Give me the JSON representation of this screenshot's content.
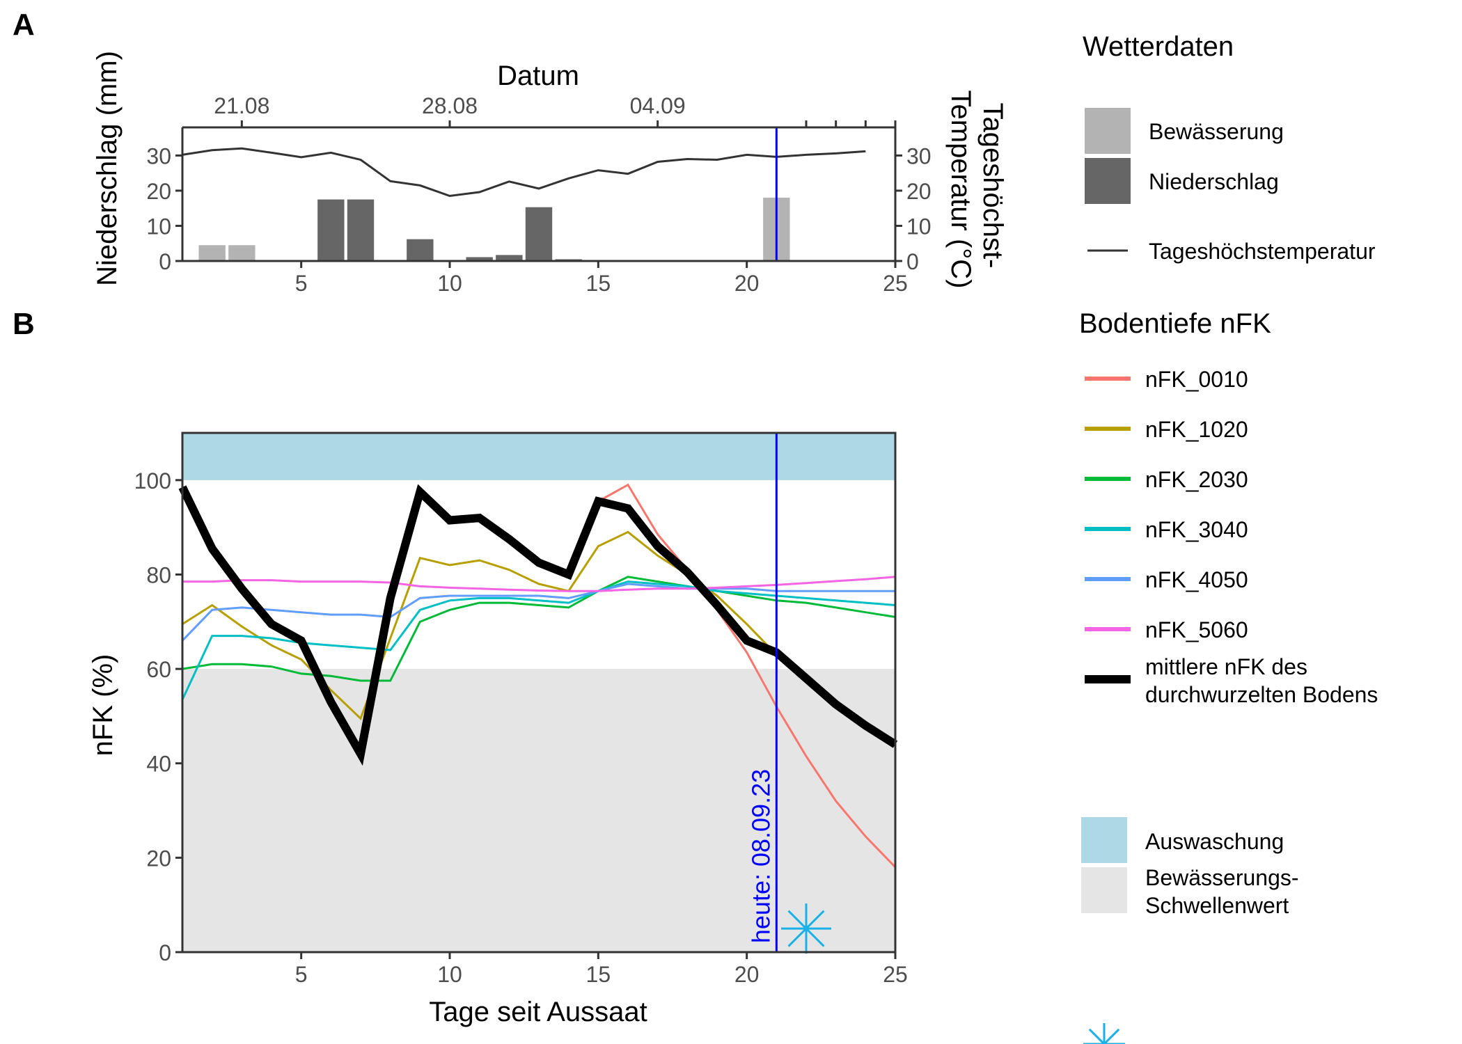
{
  "panel_labels": {
    "a": "A",
    "b": "B"
  },
  "colors": {
    "bewaesserung": "#b3b3b3",
    "niederschlag": "#666666",
    "temperature_line": "#333333",
    "today_line": "#0000ff",
    "auswaschung": "#add8e6",
    "schwellenwert": "#e5e5e5",
    "mean_nfk": "#000000",
    "star": "#1ab2e6"
  },
  "chart_data": [
    {
      "type": "bar",
      "panel": "A",
      "top_axis_title": "Datum",
      "top_ticks": [
        {
          "x": 3,
          "label": "21.08"
        },
        {
          "x": 10,
          "label": "28.08"
        },
        {
          "x": 17,
          "label": "04.09"
        }
      ],
      "top_minor_ticks": [
        22,
        23,
        24,
        25
      ],
      "ylabel_left": "Niederschlag (mm)",
      "ylabel_right": "Tageshöchst-\nTemperatur (°C)",
      "xlim": [
        1,
        25
      ],
      "ylim": [
        0,
        38
      ],
      "x_ticks": [
        5,
        10,
        15,
        20,
        25
      ],
      "y_ticks": [
        0,
        10,
        20,
        30
      ],
      "today_x": 21,
      "bars": [
        {
          "x": 2,
          "value": 4.5,
          "type": "Bewässerung"
        },
        {
          "x": 3,
          "value": 4.5,
          "type": "Bewässerung"
        },
        {
          "x": 6,
          "value": 17.5,
          "type": "Niederschlag"
        },
        {
          "x": 7,
          "value": 17.5,
          "type": "Niederschlag"
        },
        {
          "x": 9,
          "value": 6.2,
          "type": "Niederschlag"
        },
        {
          "x": 11,
          "value": 1.1,
          "type": "Niederschlag"
        },
        {
          "x": 12,
          "value": 1.7,
          "type": "Niederschlag"
        },
        {
          "x": 13,
          "value": 15.3,
          "type": "Niederschlag"
        },
        {
          "x": 14,
          "value": 0.5,
          "type": "Niederschlag"
        },
        {
          "x": 21,
          "value": 18.0,
          "type": "Bewässerung"
        }
      ],
      "temperature": {
        "name": "Tageshöchstemperatur",
        "x": [
          1,
          2,
          3,
          4,
          5,
          6,
          7,
          8,
          9,
          10,
          11,
          12,
          13,
          14,
          15,
          16,
          17,
          18,
          19,
          20,
          21,
          22,
          23,
          24
        ],
        "y": [
          30.2,
          31.5,
          32.0,
          30.8,
          29.5,
          30.8,
          28.8,
          22.7,
          21.5,
          18.5,
          19.6,
          22.6,
          20.6,
          23.5,
          25.8,
          24.8,
          28.2,
          29.0,
          28.8,
          30.2,
          29.6,
          30.2,
          30.6,
          31.2
        ]
      }
    },
    {
      "type": "line",
      "panel": "B",
      "xlabel": "Tage seit Aussaat",
      "ylabel": "nFK (%)",
      "xlim": [
        1,
        25
      ],
      "ylim": [
        0,
        110
      ],
      "x_ticks": [
        5,
        10,
        15,
        20,
        25
      ],
      "y_ticks": [
        0,
        20,
        40,
        60,
        80,
        100
      ],
      "bands": [
        {
          "name": "Auswaschung",
          "from": 100,
          "to": 110
        },
        {
          "name": "Bewässerungs-Schwellenwert",
          "from": 0,
          "to": 60
        }
      ],
      "today": {
        "x": 21,
        "label": "heute: 08.09.23"
      },
      "marker": {
        "x": 22,
        "y": 5
      },
      "series": [
        {
          "name": "nFK_0010",
          "color": "#f8766d",
          "x": [
            1,
            2,
            3,
            4,
            5,
            6,
            7,
            8,
            9,
            10,
            11,
            12,
            13,
            14,
            15,
            16,
            17,
            18,
            19,
            20,
            21,
            22,
            23,
            24,
            25
          ],
          "y": [
            98,
            85.5,
            77,
            69.5,
            66,
            53.5,
            42.5,
            75,
            97.5,
            91.5,
            92,
            87.5,
            83,
            80,
            95.5,
            99,
            88.5,
            81,
            72.5,
            63.5,
            52,
            41.5,
            32,
            24.5,
            18
          ]
        },
        {
          "name": "nFK_1020",
          "color": "#b79f00",
          "x": [
            1,
            2,
            3,
            4,
            5,
            6,
            7,
            8,
            9,
            10,
            11,
            12,
            13,
            14,
            15,
            16,
            17,
            18,
            19,
            20,
            21
          ],
          "y": [
            69.5,
            73.5,
            69,
            65,
            62,
            55.5,
            49.5,
            66.5,
            83.5,
            82,
            83,
            81,
            78,
            76.5,
            86,
            89,
            84,
            80,
            75.5,
            69.5,
            63
          ]
        },
        {
          "name": "nFK_2030",
          "color": "#00ba38",
          "x": [
            1,
            2,
            3,
            4,
            5,
            6,
            7,
            8,
            9,
            10,
            11,
            12,
            13,
            14,
            15,
            16,
            17,
            18,
            19,
            20,
            21,
            22,
            23,
            24,
            25
          ],
          "y": [
            60,
            61,
            61,
            60.5,
            59,
            58.5,
            57.5,
            57.5,
            70,
            72.5,
            74,
            74,
            73.5,
            73,
            76.5,
            79.5,
            78.5,
            77.5,
            76.5,
            75.5,
            74.5,
            74,
            73,
            72,
            71
          ]
        },
        {
          "name": "nFK_3040",
          "color": "#00bfc4",
          "x": [
            1,
            2,
            3,
            4,
            5,
            6,
            7,
            8,
            9,
            10,
            11,
            12,
            13,
            14,
            15,
            16,
            17,
            18,
            19,
            20,
            21,
            22,
            23,
            24,
            25
          ],
          "y": [
            53.5,
            67,
            67,
            66.5,
            65.5,
            65,
            64.5,
            64,
            72.5,
            74.5,
            75,
            75,
            74.5,
            74,
            76.5,
            78.5,
            78,
            77.5,
            76.5,
            76,
            75.5,
            75,
            74.5,
            74,
            73.5
          ]
        },
        {
          "name": "nFK_4050",
          "color": "#619cff",
          "x": [
            1,
            2,
            3,
            4,
            5,
            6,
            7,
            8,
            9,
            10,
            11,
            12,
            13,
            14,
            15,
            16,
            17,
            18,
            19,
            20,
            21,
            22,
            23,
            24,
            25
          ],
          "y": [
            66,
            72.5,
            73,
            72.5,
            72,
            71.5,
            71.5,
            71,
            75,
            75.5,
            75.5,
            75.5,
            75.5,
            75,
            76.5,
            78,
            77.5,
            77,
            77,
            77,
            76.5,
            76.5,
            76.5,
            76.5,
            76.5
          ]
        },
        {
          "name": "nFK_5060",
          "color": "#f564e3",
          "x": [
            1,
            2,
            3,
            4,
            5,
            6,
            7,
            8,
            9,
            10,
            11,
            12,
            13,
            14,
            15,
            16,
            17,
            18,
            19,
            20,
            21,
            22,
            23,
            24,
            25
          ],
          "y": [
            78.5,
            78.5,
            78.8,
            78.8,
            78.5,
            78.5,
            78.5,
            78.3,
            77.5,
            77.2,
            77,
            76.8,
            76.6,
            76.5,
            76.5,
            76.8,
            77,
            77,
            77.2,
            77.5,
            77.8,
            78.2,
            78.6,
            79,
            79.5
          ]
        },
        {
          "name": "mittlere nFK des\ndurchwurzelten Bodens",
          "color": "#000000",
          "width": "thick",
          "x": [
            1,
            2,
            3,
            4,
            5,
            6,
            7,
            8,
            9,
            10,
            11,
            12,
            13,
            14,
            15,
            16,
            17,
            18,
            19,
            20,
            21,
            22,
            23,
            24,
            25
          ],
          "y": [
            98.5,
            85.5,
            77,
            69.5,
            66,
            53,
            42,
            75,
            97.5,
            91.5,
            92,
            87.5,
            82.5,
            80,
            95.5,
            94,
            86,
            80.5,
            73.5,
            66,
            63.5,
            58,
            52.5,
            48,
            44
          ]
        }
      ]
    }
  ],
  "legends": {
    "wetter": {
      "title": "Wetterdaten",
      "items": [
        {
          "label": "Bewässerung",
          "kind": "fill",
          "color": "#b3b3b3"
        },
        {
          "label": "Niederschlag",
          "kind": "fill",
          "color": "#666666"
        },
        {
          "label": "Tageshöchstemperatur",
          "kind": "line",
          "color": "#333333"
        }
      ]
    },
    "boden": {
      "title": "Bodentiefe nFK",
      "items": [
        {
          "label": "nFK_0010",
          "color": "#f8766d",
          "kind": "line"
        },
        {
          "label": "nFK_1020",
          "color": "#b79f00",
          "kind": "line"
        },
        {
          "label": "nFK_2030",
          "color": "#00ba38",
          "kind": "line"
        },
        {
          "label": "nFK_3040",
          "color": "#00bfc4",
          "kind": "line"
        },
        {
          "label": "nFK_4050",
          "color": "#619cff",
          "kind": "line"
        },
        {
          "label": "nFK_5060",
          "color": "#f564e3",
          "kind": "line"
        },
        {
          "label": "mittlere nFK des\ndurchwurzelten Bodens",
          "color": "#000000",
          "kind": "thick"
        }
      ]
    },
    "bands": {
      "items": [
        {
          "label": "Auswaschung",
          "color": "#add8e6"
        },
        {
          "label": "Bewässerungs-\nSchwellenwert",
          "color": "#e5e5e5"
        }
      ]
    }
  }
}
